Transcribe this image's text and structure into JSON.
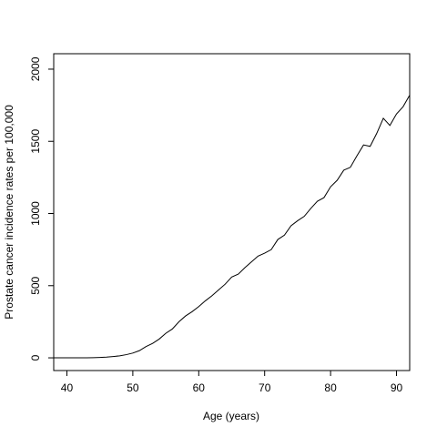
{
  "chart_data": {
    "type": "line",
    "xlabel": "Age (years)",
    "ylabel": "Prostate cancer incidence rates per 100,000",
    "x": [
      38,
      39,
      40,
      41,
      42,
      43,
      44,
      45,
      46,
      47,
      48,
      49,
      50,
      51,
      52,
      53,
      54,
      55,
      56,
      57,
      58,
      59,
      60,
      61,
      62,
      63,
      64,
      65,
      66,
      67,
      68,
      69,
      70,
      71,
      72,
      73,
      74,
      75,
      76,
      77,
      78,
      79,
      80,
      81,
      82,
      83,
      84,
      85,
      86,
      87,
      88,
      89,
      90,
      91,
      92
    ],
    "series": [
      {
        "color": "#000000",
        "values": [
          0,
          0,
          0,
          0,
          0,
          0,
          1,
          3,
          5,
          9,
          14,
          22,
          33,
          50,
          78,
          100,
          130,
          170,
          200,
          250,
          290,
          320,
          355,
          395,
          430,
          470,
          510,
          560,
          580,
          625,
          665,
          705,
          725,
          750,
          820,
          850,
          915,
          950,
          980,
          1035,
          1085,
          1110,
          1185,
          1230,
          1300,
          1320,
          1400,
          1475,
          1465,
          1555,
          1660,
          1610,
          1690,
          1740,
          1820
        ]
      }
    ],
    "xlim": [
      38,
      92
    ],
    "xticks": [
      40,
      50,
      60,
      70,
      80,
      90
    ],
    "ylim": [
      -88,
      2107
    ],
    "yticks": [
      0,
      500,
      1000,
      1500,
      2000
    ]
  }
}
